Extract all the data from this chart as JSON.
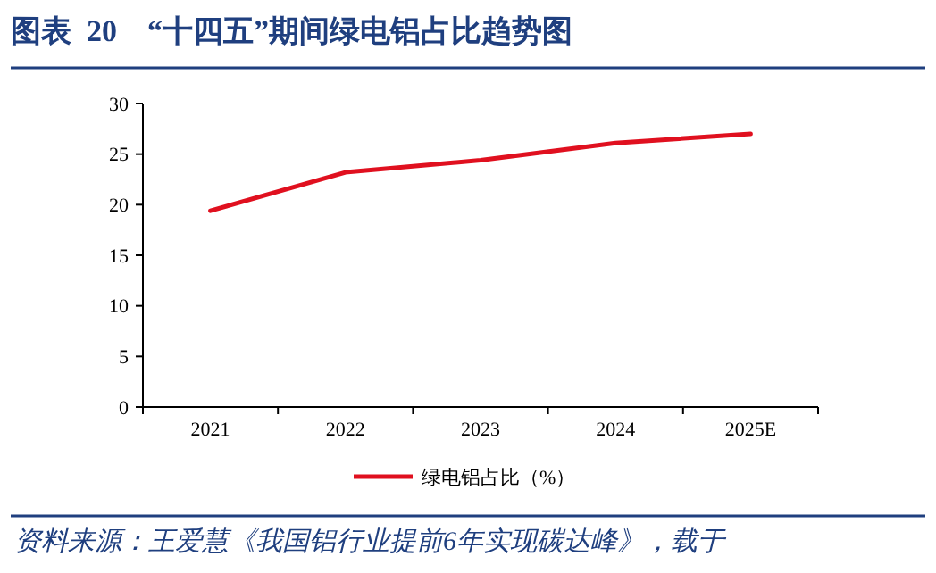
{
  "chart_data": {
    "type": "line",
    "title": "图表  20    “十四五”期间绿电铝占比趋势图",
    "categories": [
      "2021",
      "2022",
      "2023",
      "2024",
      "2025E"
    ],
    "series": [
      {
        "name": "绿电铝占比（%）",
        "color": "#e0101f",
        "values": [
          19.4,
          23.2,
          24.4,
          26.1,
          27.0
        ]
      }
    ],
    "ylim": [
      0,
      30
    ],
    "yticks": [
      0,
      5,
      10,
      15,
      20,
      25,
      30
    ],
    "grid": false,
    "legend": "bottom",
    "marker": "none",
    "line_style": "solid",
    "annotations": [
      "资料来源：王爱慧《我国铝行业提前6年实现碳达峰》，载于"
    ]
  }
}
